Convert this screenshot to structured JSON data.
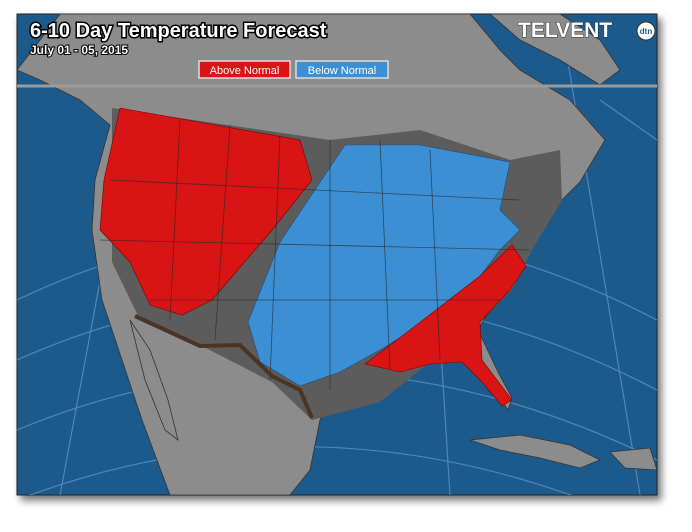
{
  "header": {
    "title": "6-10 Day Temperature Forecast",
    "subtitle": "July 01 - 05, 2015",
    "logo": "TELVENT",
    "logo_badge": "dtn"
  },
  "legend": {
    "items": [
      "Above Normal",
      "Below Normal"
    ]
  }
}
